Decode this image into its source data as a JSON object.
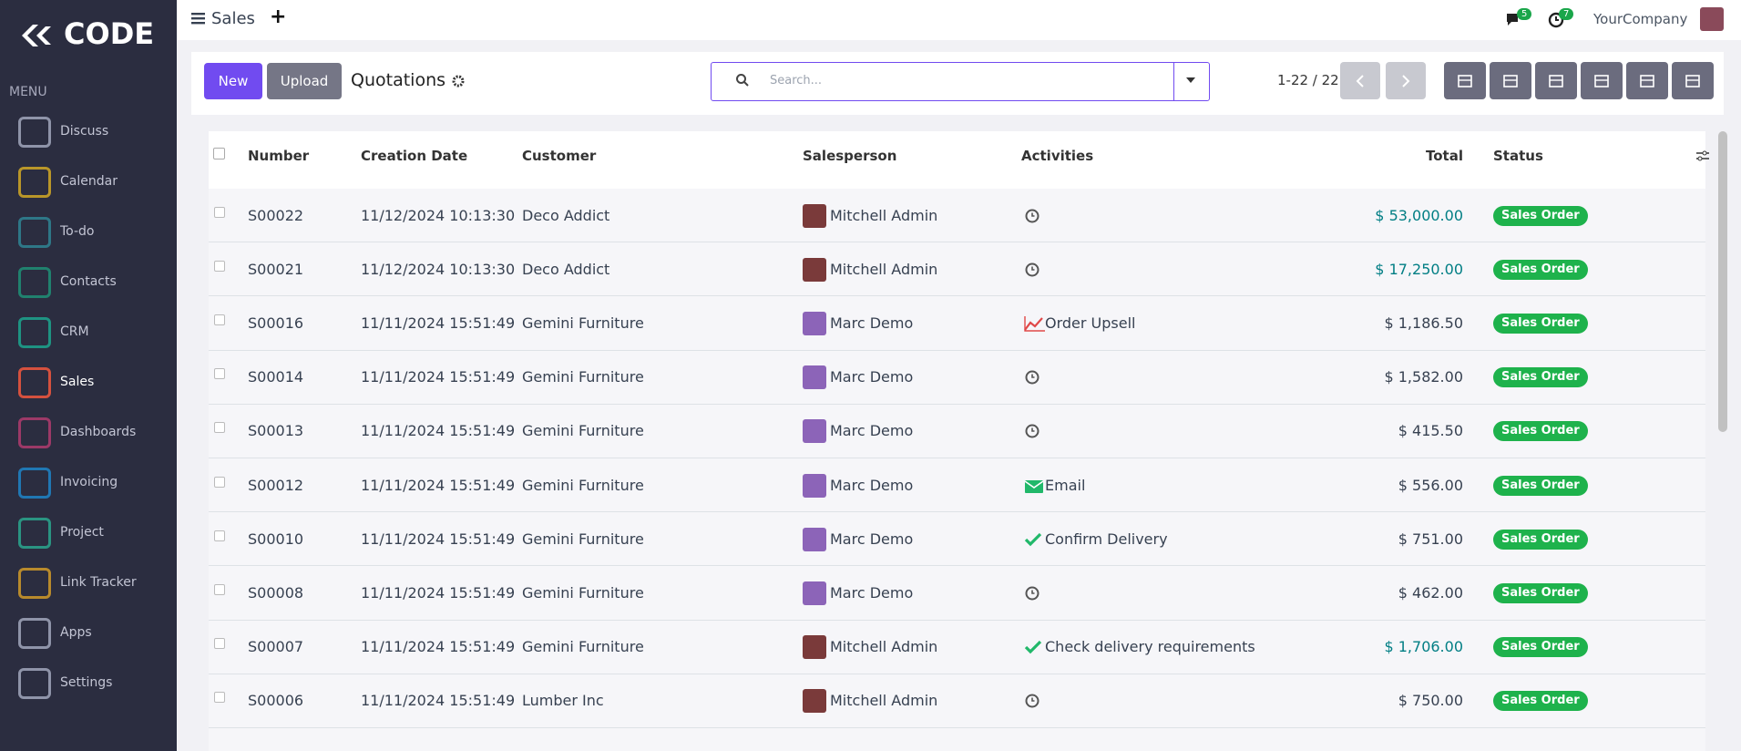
{
  "brand": "CODE",
  "menu_label": "MENU",
  "menu": [
    {
      "label": "Discuss",
      "color": "#9aa0b5"
    },
    {
      "label": "Calendar",
      "color": "#c9a227"
    },
    {
      "label": "To-do",
      "color": "#2f7f8f"
    },
    {
      "label": "Contacts",
      "color": "#1f8b73"
    },
    {
      "label": "CRM",
      "color": "#1d9e8a"
    },
    {
      "label": "Sales",
      "color": "#e8553e"
    },
    {
      "label": "Dashboards",
      "color": "#a93b6b"
    },
    {
      "label": "Invoicing",
      "color": "#1f7fc0"
    },
    {
      "label": "Project",
      "color": "#2aa08a"
    },
    {
      "label": "Link Tracker",
      "color": "#c8952a"
    },
    {
      "label": "Apps",
      "color": "#9aa0b5"
    },
    {
      "label": "Settings",
      "color": "#9aa0b5"
    }
  ],
  "active_menu": "Sales",
  "topbar": {
    "app": "Sales",
    "add": "+",
    "messages_badge": "5",
    "activities_badge": "7",
    "company": "YourCompany"
  },
  "controls": {
    "new": "New",
    "upload": "Upload",
    "title": "Quotations",
    "search_placeholder": "Search...",
    "pager": "1-22 / 22"
  },
  "table": {
    "headers": {
      "number": "Number",
      "date": "Creation Date",
      "customer": "Customer",
      "salesperson": "Salesperson",
      "activities": "Activities",
      "total": "Total",
      "status": "Status"
    },
    "rows": [
      {
        "number": "S00022",
        "date": "11/12/2024 10:13:30",
        "customer": "Deco Addict",
        "salesperson": "Mitchell Admin",
        "activity": null,
        "activity_icon": "clock",
        "total": "$ 53,000.00",
        "total_color": "#017e84",
        "status": "Sales Order"
      },
      {
        "number": "S00021",
        "date": "11/12/2024 10:13:30",
        "customer": "Deco Addict",
        "salesperson": "Mitchell Admin",
        "activity": null,
        "activity_icon": "clock",
        "total": "$ 17,250.00",
        "total_color": "#017e84",
        "status": "Sales Order"
      },
      {
        "number": "S00016",
        "date": "11/11/2024 15:51:49",
        "customer": "Gemini Furniture",
        "salesperson": "Marc Demo",
        "activity": "Order Upsell",
        "activity_icon": "chart",
        "total": "$ 1,186.50",
        "total_color": "#374151",
        "status": "Sales Order"
      },
      {
        "number": "S00014",
        "date": "11/11/2024 15:51:49",
        "customer": "Gemini Furniture",
        "salesperson": "Marc Demo",
        "activity": null,
        "activity_icon": "clock",
        "total": "$ 1,582.00",
        "total_color": "#374151",
        "status": "Sales Order"
      },
      {
        "number": "S00013",
        "date": "11/11/2024 15:51:49",
        "customer": "Gemini Furniture",
        "salesperson": "Marc Demo",
        "activity": null,
        "activity_icon": "clock",
        "total": "$ 415.50",
        "total_color": "#374151",
        "status": "Sales Order"
      },
      {
        "number": "S00012",
        "date": "11/11/2024 15:51:49",
        "customer": "Gemini Furniture",
        "salesperson": "Marc Demo",
        "activity": "Email",
        "activity_icon": "email",
        "total": "$ 556.00",
        "total_color": "#374151",
        "status": "Sales Order"
      },
      {
        "number": "S00010",
        "date": "11/11/2024 15:51:49",
        "customer": "Gemini Furniture",
        "salesperson": "Marc Demo",
        "activity": "Confirm Delivery",
        "activity_icon": "check",
        "total": "$ 751.00",
        "total_color": "#374151",
        "status": "Sales Order"
      },
      {
        "number": "S00008",
        "date": "11/11/2024 15:51:49",
        "customer": "Gemini Furniture",
        "salesperson": "Marc Demo",
        "activity": null,
        "activity_icon": "clock",
        "total": "$ 462.00",
        "total_color": "#374151",
        "status": "Sales Order"
      },
      {
        "number": "S00007",
        "date": "11/11/2024 15:51:49",
        "customer": "Gemini Furniture",
        "salesperson": "Mitchell Admin",
        "activity": "Check delivery requirements",
        "activity_icon": "check",
        "total": "$ 1,706.00",
        "total_color": "#017e84",
        "status": "Sales Order"
      },
      {
        "number": "S00006",
        "date": "11/11/2024 15:51:49",
        "customer": "Lumber Inc",
        "salesperson": "Mitchell Admin",
        "activity": null,
        "activity_icon": "clock",
        "total": "$ 750.00",
        "total_color": "#374151",
        "status": "Sales Order"
      }
    ]
  }
}
